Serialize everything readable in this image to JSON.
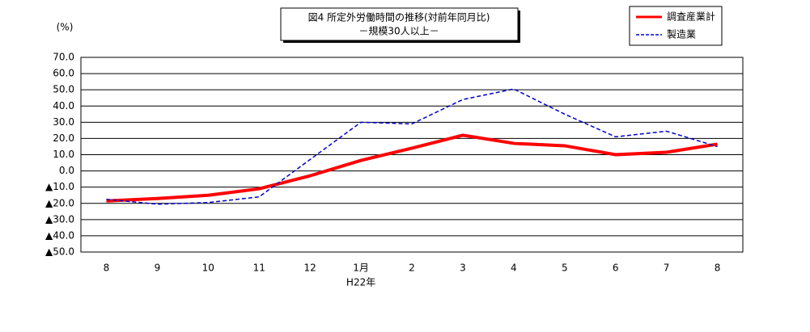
{
  "chart_data": {
    "type": "line",
    "title": "図4 所定外労働時間の推移(対前年同月比)",
    "subtitle": "－規模30人以上－",
    "y_label": "(%)",
    "categories": [
      "8",
      "9",
      "10",
      "11",
      "12",
      "1月",
      "2",
      "3",
      "4",
      "5",
      "6",
      "7",
      "8"
    ],
    "category_note": "H22年",
    "series": [
      {
        "name": "調査産業計",
        "color": "#ff0000",
        "dash": "solid",
        "values": [
          -18.5,
          -17,
          -15,
          -11,
          -3,
          6.5,
          14,
          22,
          17,
          15.5,
          10,
          11.5,
          16.5
        ]
      },
      {
        "name": "製造業",
        "color": "#0000cc",
        "dash": "dashed",
        "values": [
          -17.5,
          -20.5,
          -19.5,
          -16,
          7,
          30,
          29,
          44,
          50.5,
          35,
          21,
          24.5,
          15
        ]
      }
    ],
    "ylim": [
      -50,
      70
    ],
    "yticks": [
      {
        "value": 70,
        "label": "70.0"
      },
      {
        "value": 60,
        "label": "60.0"
      },
      {
        "value": 50,
        "label": "50.0"
      },
      {
        "value": 40,
        "label": "40.0"
      },
      {
        "value": 30,
        "label": "30.0"
      },
      {
        "value": 20,
        "label": "20.0"
      },
      {
        "value": 10,
        "label": "10.0"
      },
      {
        "value": 0,
        "label": "0.0"
      },
      {
        "value": -10,
        "label": "▲10.0"
      },
      {
        "value": -20,
        "label": "▲20.0"
      },
      {
        "value": -30,
        "label": "▲30.0"
      },
      {
        "value": -40,
        "label": "▲40.0"
      },
      {
        "value": -50,
        "label": "▲50.0"
      }
    ],
    "grid": true
  }
}
